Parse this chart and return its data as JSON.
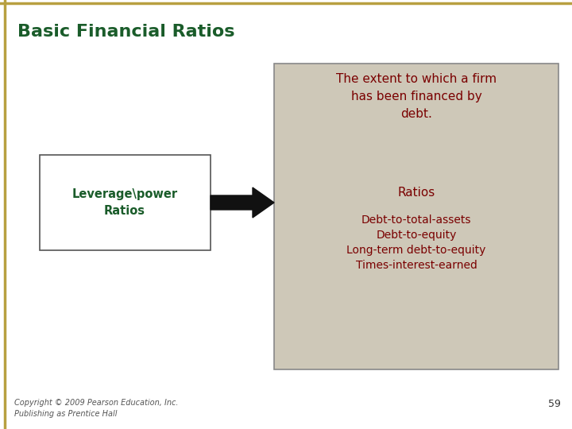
{
  "title": "Basic Financial Ratios",
  "title_color": "#1a5c2a",
  "title_fontsize": 16,
  "bg_color": "#ffffff",
  "border_color": "#b8a040",
  "left_box_text": "Leverage\\power\nRatios",
  "left_box_text_color": "#1a5c2a",
  "left_box_bg": "#ffffff",
  "left_box_border": "#555555",
  "right_box_bg": "#cec8b8",
  "right_box_border": "#888888",
  "description_text": "The extent to which a firm\nhas been financed by\ndebt.",
  "description_color": "#7a0000",
  "ratios_label": "Ratios",
  "ratios_color": "#7a0000",
  "ratios_list": [
    "Debt-to-total-assets",
    "Debt-to-equity",
    "Long-term debt-to-equity",
    "Times-interest-earned"
  ],
  "ratios_list_color": "#7a0000",
  "arrow_color": "#111111",
  "copyright_text": "Copyright © 2009 Pearson Education, Inc.\nPublishing as Prentice Hall",
  "copyright_color": "#555555",
  "page_number": "59",
  "page_number_color": "#333333"
}
